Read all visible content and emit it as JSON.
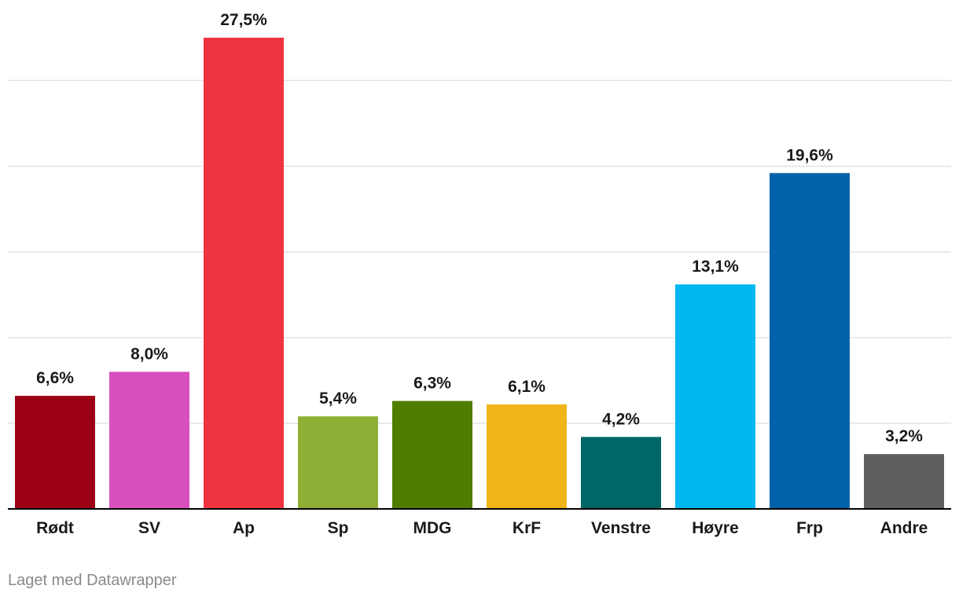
{
  "chart_data": {
    "type": "bar",
    "categories": [
      "Rødt",
      "SV",
      "Ap",
      "Sp",
      "MDG",
      "KrF",
      "Venstre",
      "Høyre",
      "Frp",
      "Andre"
    ],
    "values": [
      6.6,
      8.0,
      27.5,
      5.4,
      6.3,
      6.1,
      4.2,
      13.1,
      19.6,
      3.2
    ],
    "value_labels": [
      "6,6%",
      "8,0%",
      "27,5%",
      "5,4%",
      "6,3%",
      "6,1%",
      "4,2%",
      "13,1%",
      "19,6%",
      "3,2%"
    ],
    "colors": [
      "#9b0015",
      "#d84fbe",
      "#ef3340",
      "#8fae35",
      "#4f7d00",
      "#f0b619",
      "#006666",
      "#00b7f0",
      "#0062a8",
      "#5f5f5f"
    ],
    "ylim": [
      0,
      27.5
    ],
    "gridline_values": [
      5,
      10,
      15,
      20,
      25
    ],
    "grid": true,
    "legend": "none"
  },
  "credit": "Laget med Datawrapper"
}
